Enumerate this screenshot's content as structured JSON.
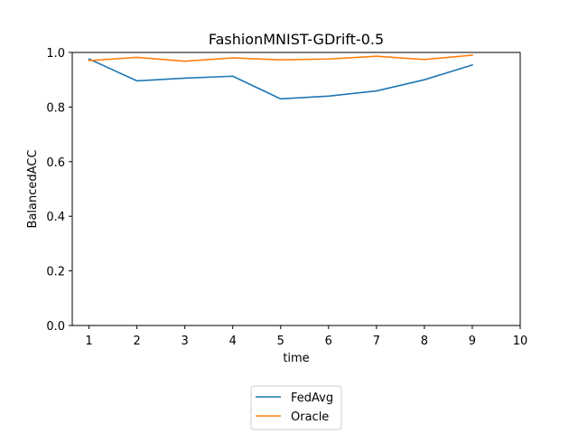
{
  "chart_data": {
    "type": "line",
    "title": "FashionMNIST-GDrift-0.5",
    "xlabel": "time",
    "ylabel": "BalancedACC",
    "xlim": [
      0.65,
      10
    ],
    "ylim": [
      0,
      1
    ],
    "xticks": [
      1,
      2,
      3,
      4,
      5,
      6,
      7,
      8,
      9,
      10
    ],
    "yticks": [
      0.0,
      0.2,
      0.4,
      0.6,
      0.8,
      1.0
    ],
    "ytick_labels": [
      "0.0",
      "0.2",
      "0.4",
      "0.6",
      "0.8",
      "1.0"
    ],
    "grid": false,
    "legend_position": "below-center",
    "series": [
      {
        "name": "FedAvg",
        "color": "#1f77b4",
        "x": [
          1,
          2,
          3,
          4,
          5,
          6,
          7,
          8,
          9
        ],
        "y": [
          0.976,
          0.896,
          0.906,
          0.913,
          0.83,
          0.84,
          0.859,
          0.9,
          0.954
        ]
      },
      {
        "name": "Oracle",
        "color": "#ff7f0e",
        "x": [
          1,
          2,
          3,
          4,
          5,
          6,
          7,
          8,
          9
        ],
        "y": [
          0.97,
          0.982,
          0.968,
          0.98,
          0.973,
          0.976,
          0.986,
          0.974,
          0.99
        ]
      }
    ]
  }
}
